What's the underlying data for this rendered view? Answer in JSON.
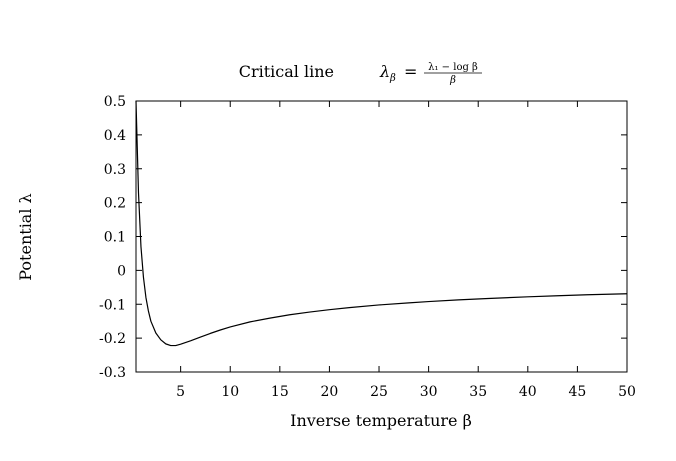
{
  "chart_data": {
    "type": "line",
    "title": "Critical line",
    "title_math": {
      "lhs_symbol": "λ",
      "lhs_subscript": "β",
      "equals": "=",
      "numerator": "λ₁ − log β",
      "denominator": "β"
    },
    "xlabel": "Inverse temperature β",
    "ylabel": "Potential λ",
    "xlim": [
      0.5,
      50
    ],
    "ylim": [
      -0.3,
      0.5
    ],
    "x_ticks": [
      5,
      10,
      15,
      20,
      25,
      30,
      35,
      40,
      45,
      50
    ],
    "x_tick_labels": [
      "5",
      "10",
      "15",
      "20",
      "25",
      "30",
      "35",
      "40",
      "45",
      "50"
    ],
    "y_ticks": [
      -0.3,
      -0.2,
      -0.1,
      0,
      0.1,
      0.2,
      0.3,
      0.4,
      0.5
    ],
    "y_tick_labels": [
      "-0.3",
      "-0.2",
      "-0.1",
      "0",
      "0.1",
      "0.2",
      "0.3",
      "0.4",
      "0.5"
    ],
    "grid": false,
    "legend": "none",
    "series": [
      {
        "color": "#000000",
        "x": [
          0.5,
          0.75,
          1,
          1.25,
          1.5,
          1.75,
          2,
          2.5,
          3,
          3.5,
          4,
          4.5,
          5,
          6,
          7,
          8,
          9,
          10,
          12,
          14,
          16,
          18,
          20,
          22,
          25,
          28,
          30,
          33,
          36,
          40,
          43,
          46,
          50
        ],
        "y": [
          0.5,
          0.23,
          0.07,
          -0.02,
          -0.08,
          -0.12,
          -0.15,
          -0.185,
          -0.205,
          -0.217,
          -0.222,
          -0.222,
          -0.218,
          -0.208,
          -0.197,
          -0.186,
          -0.176,
          -0.167,
          -0.152,
          -0.141,
          -0.131,
          -0.123,
          -0.116,
          -0.11,
          -0.102,
          -0.096,
          -0.092,
          -0.087,
          -0.083,
          -0.078,
          -0.075,
          -0.072,
          -0.069
        ]
      }
    ]
  }
}
